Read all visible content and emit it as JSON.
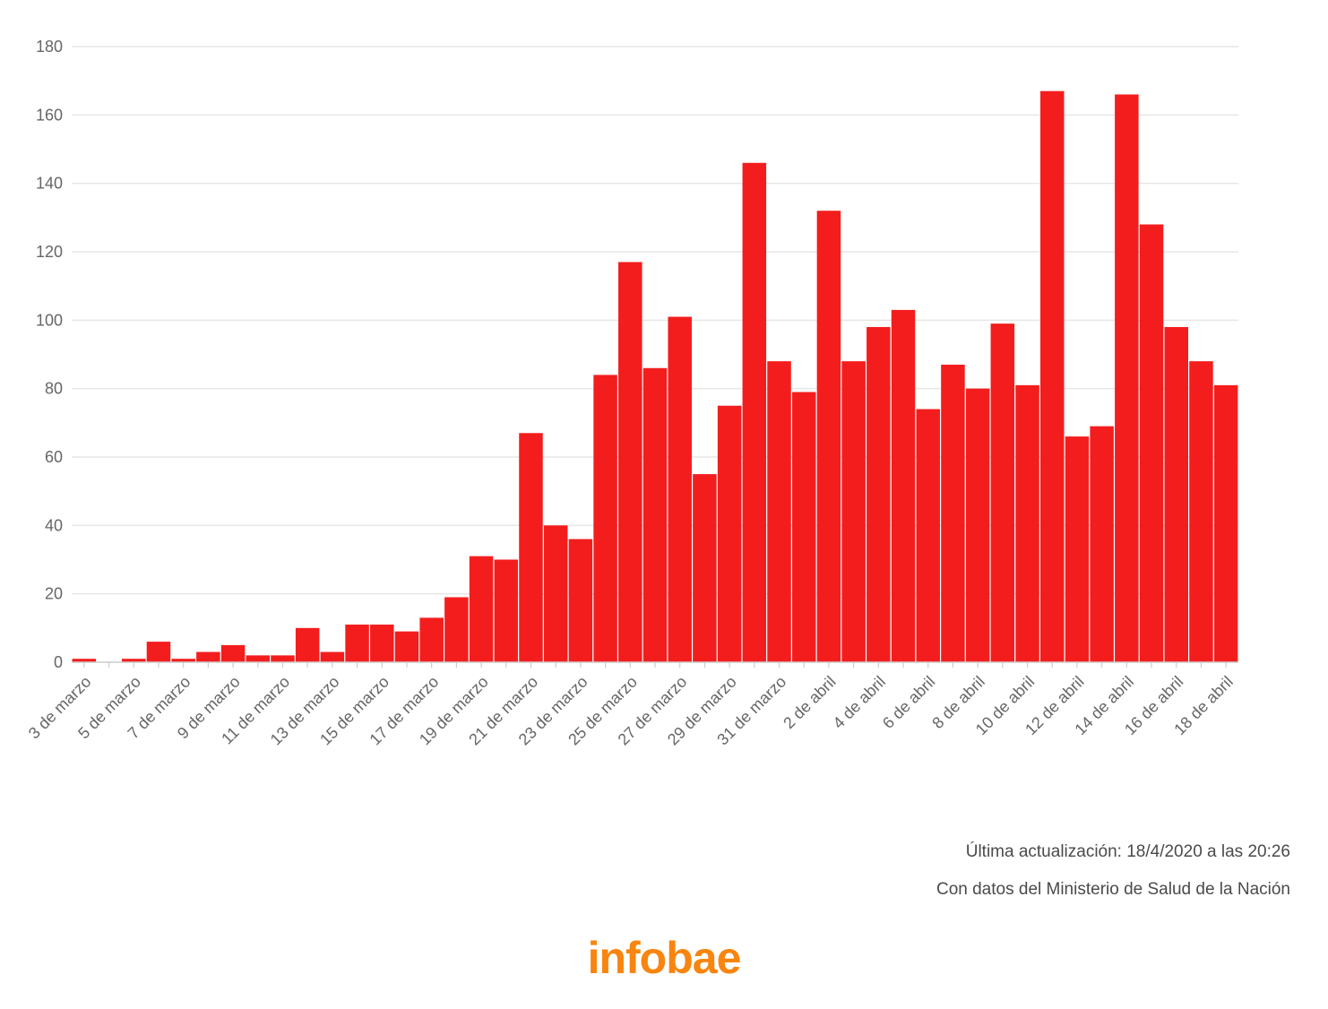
{
  "chart_data": {
    "type": "bar",
    "title": "",
    "xlabel": "",
    "ylabel": "",
    "ylim": [
      0,
      180
    ],
    "yticks": [
      0,
      20,
      40,
      60,
      80,
      100,
      120,
      140,
      160,
      180
    ],
    "grid": true,
    "bar_color": "#f41d1d",
    "categories": [
      "3 de marzo",
      "4 de marzo",
      "5 de marzo",
      "6 de marzo",
      "7 de marzo",
      "8 de marzo",
      "9 de marzo",
      "10 de marzo",
      "11 de marzo",
      "12 de marzo",
      "13 de marzo",
      "14 de marzo",
      "15 de marzo",
      "16 de marzo",
      "17 de marzo",
      "18 de marzo",
      "19 de marzo",
      "20 de marzo",
      "21 de marzo",
      "22 de marzo",
      "23 de marzo",
      "24 de marzo",
      "25 de marzo",
      "26 de marzo",
      "27 de marzo",
      "28 de marzo",
      "29 de marzo",
      "30 de marzo",
      "31 de marzo",
      "1 de abril",
      "2 de abril",
      "3 de abril",
      "4 de abril",
      "5 de abril",
      "6 de abril",
      "7 de abril",
      "8 de abril",
      "9 de abril",
      "10 de abril",
      "11 de abril",
      "12 de abril",
      "13 de abril",
      "14 de abril",
      "15 de abril",
      "16 de abril",
      "17 de abril",
      "18 de abril"
    ],
    "values": [
      1,
      0,
      1,
      6,
      1,
      3,
      5,
      2,
      2,
      10,
      3,
      11,
      11,
      9,
      13,
      19,
      31,
      30,
      67,
      40,
      36,
      84,
      117,
      86,
      101,
      55,
      75,
      146,
      88,
      79,
      132,
      88,
      98,
      103,
      74,
      87,
      80,
      99,
      81,
      167,
      66,
      69,
      166,
      128,
      98,
      88,
      81
    ],
    "x_tick_labels": [
      "3 de marzo",
      "5 de marzo",
      "7 de marzo",
      "9 de marzo",
      "11 de marzo",
      "13 de marzo",
      "15 de marzo",
      "17 de marzo",
      "19 de marzo",
      "21 de marzo",
      "23 de marzo",
      "25 de marzo",
      "27 de marzo",
      "29 de marzo",
      "31 de marzo",
      "2 de abril",
      "4 de abril",
      "6 de abril",
      "8 de abril",
      "10 de abril",
      "12 de abril",
      "14 de abril",
      "16 de abril",
      "18 de abril"
    ]
  },
  "footer": {
    "update": "Última actualización: 18/4/2020 a las 20:26",
    "source": "Con datos del Ministerio de Salud de la Nación"
  },
  "logo": {
    "text": "infobae",
    "color": "#f7850f"
  }
}
